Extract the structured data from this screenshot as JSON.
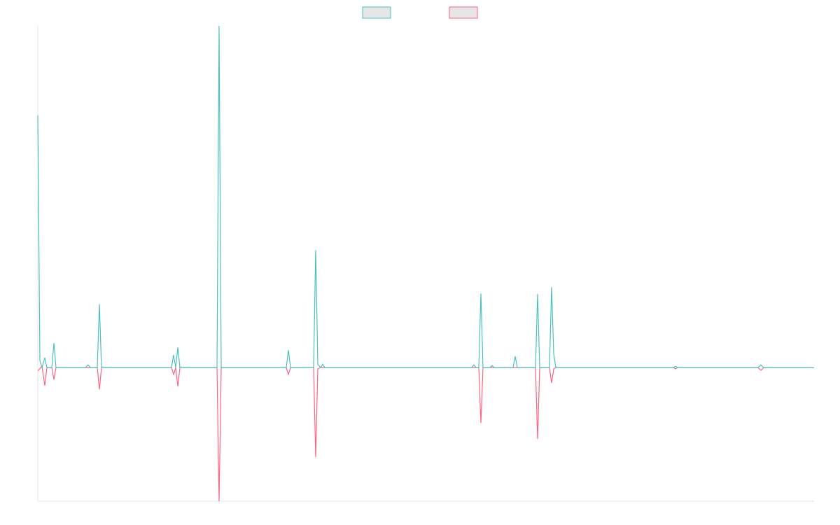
{
  "chart_data": {
    "type": "line",
    "xlim": [
      0,
      1109
    ],
    "ylim": [
      -39.1,
      100
    ],
    "grid": false,
    "legend": "top",
    "series": [
      {
        "color": "#ff6384",
        "x": [
          0,
          6,
          10,
          13,
          20,
          23,
          26,
          85,
          88,
          91,
          191,
          194,
          197,
          200,
          203,
          256,
          259,
          262,
          355,
          358,
          361,
          394,
          397,
          400,
          404,
          630,
          633,
          636,
          711,
          714,
          717,
          731,
          734,
          737,
          740,
          908,
          911,
          914,
          1029,
          1033,
          1037,
          1109
        ],
        "values": [
          -1,
          0.4,
          -5.3,
          0,
          0,
          -3.5,
          0,
          0,
          -6.4,
          0,
          0,
          -2,
          0,
          -5.5,
          0,
          0,
          -39.1,
          0,
          0,
          -2,
          0,
          0,
          -26.2,
          -0.4,
          0,
          0,
          -16.2,
          0,
          0,
          -20.9,
          0,
          0,
          -4.5,
          -0.4,
          0,
          0,
          -0.4,
          0,
          0,
          -0.8,
          0,
          0
        ]
      },
      {
        "color": "#4bc0c0",
        "x": [
          0,
          3,
          6,
          10,
          13,
          20,
          23,
          26,
          68,
          72,
          75,
          85,
          88,
          91,
          191,
          194,
          197,
          200,
          203,
          256,
          259,
          262,
          355,
          358,
          361,
          394,
          397,
          400,
          404,
          407,
          410,
          620,
          623,
          626,
          630,
          633,
          636,
          646,
          649,
          652,
          679,
          682,
          685,
          711,
          714,
          717,
          731,
          734,
          737,
          740,
          908,
          911,
          914,
          1029,
          1033,
          1037,
          1109
        ],
        "values": [
          73.8,
          2,
          0,
          2.9,
          0,
          0,
          7.2,
          0,
          0,
          0.8,
          0,
          0,
          18.6,
          0,
          0,
          3.7,
          0,
          5.9,
          0,
          0,
          100,
          0,
          0,
          5.1,
          0,
          0,
          34.4,
          1,
          0,
          1,
          0,
          0,
          0.8,
          0,
          0,
          21.7,
          0,
          0,
          0.6,
          0,
          0,
          3.3,
          0,
          0,
          21.5,
          0,
          0,
          23.6,
          4.1,
          0,
          0,
          0.4,
          0,
          0,
          0.8,
          0,
          0
        ]
      }
    ]
  }
}
